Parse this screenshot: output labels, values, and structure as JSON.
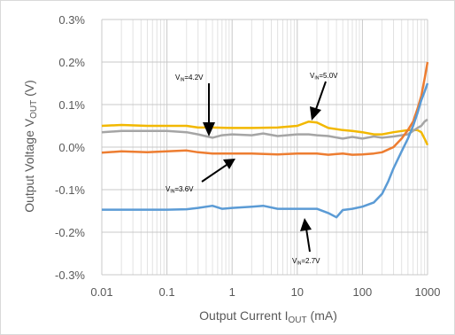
{
  "chart_data": {
    "type": "line",
    "xlabel": "Output Current I",
    "xlabel_sub": "OUT",
    "xlabel_unit": " (mA)",
    "ylabel": "Output Voltage V",
    "ylabel_sub": "OUT",
    "ylabel_unit": " (V)",
    "x_scale": "log",
    "xlim": [
      0.01,
      1000
    ],
    "ylim": [
      -0.3,
      0.3
    ],
    "x_ticks": [
      {
        "v": 0.01,
        "label": "0.01"
      },
      {
        "v": 0.1,
        "label": "0.1"
      },
      {
        "v": 1,
        "label": "1"
      },
      {
        "v": 10,
        "label": "10"
      },
      {
        "v": 100,
        "label": "100"
      },
      {
        "v": 1000,
        "label": "1000"
      }
    ],
    "y_ticks": [
      {
        "v": 0.3,
        "label": "0.3%"
      },
      {
        "v": 0.2,
        "label": "0.2%"
      },
      {
        "v": 0.1,
        "label": "0.1%"
      },
      {
        "v": 0.0,
        "label": "0.0%"
      },
      {
        "v": -0.1,
        "label": "-0.1%"
      },
      {
        "v": -0.2,
        "label": "-0.2%"
      },
      {
        "v": -0.3,
        "label": "-0.3%"
      }
    ],
    "grid": true,
    "series": [
      {
        "name": "VIN=5.0V",
        "color": "#f2b800",
        "points": [
          [
            0.01,
            0.05
          ],
          [
            0.02,
            0.052
          ],
          [
            0.05,
            0.05
          ],
          [
            0.1,
            0.05
          ],
          [
            0.2,
            0.05
          ],
          [
            0.3,
            0.046
          ],
          [
            0.5,
            0.046
          ],
          [
            1,
            0.045
          ],
          [
            2,
            0.045
          ],
          [
            5,
            0.046
          ],
          [
            10,
            0.05
          ],
          [
            15,
            0.06
          ],
          [
            20,
            0.058
          ],
          [
            30,
            0.045
          ],
          [
            50,
            0.04
          ],
          [
            70,
            0.038
          ],
          [
            100,
            0.035
          ],
          [
            150,
            0.03
          ],
          [
            200,
            0.03
          ],
          [
            300,
            0.035
          ],
          [
            500,
            0.04
          ],
          [
            700,
            0.04
          ],
          [
            800,
            0.035
          ],
          [
            900,
            0.02
          ],
          [
            1000,
            0.005
          ]
        ]
      },
      {
        "name": "VIN=4.2V",
        "color": "#a5a5a5",
        "points": [
          [
            0.01,
            0.035
          ],
          [
            0.02,
            0.038
          ],
          [
            0.05,
            0.038
          ],
          [
            0.1,
            0.038
          ],
          [
            0.2,
            0.035
          ],
          [
            0.3,
            0.03
          ],
          [
            0.5,
            0.022
          ],
          [
            0.7,
            0.028
          ],
          [
            1,
            0.03
          ],
          [
            2,
            0.028
          ],
          [
            3,
            0.032
          ],
          [
            5,
            0.026
          ],
          [
            10,
            0.03
          ],
          [
            15,
            0.03
          ],
          [
            20,
            0.028
          ],
          [
            30,
            0.026
          ],
          [
            50,
            0.02
          ],
          [
            70,
            0.024
          ],
          [
            100,
            0.02
          ],
          [
            150,
            0.025
          ],
          [
            200,
            0.022
          ],
          [
            300,
            0.025
          ],
          [
            500,
            0.03
          ],
          [
            700,
            0.045
          ],
          [
            800,
            0.05
          ],
          [
            900,
            0.06
          ],
          [
            1000,
            0.065
          ]
        ]
      },
      {
        "name": "VIN=3.6V",
        "color": "#ed7d31",
        "points": [
          [
            0.01,
            -0.013
          ],
          [
            0.02,
            -0.01
          ],
          [
            0.05,
            -0.012
          ],
          [
            0.1,
            -0.01
          ],
          [
            0.2,
            -0.008
          ],
          [
            0.3,
            -0.012
          ],
          [
            0.5,
            -0.015
          ],
          [
            1,
            -0.015
          ],
          [
            2,
            -0.015
          ],
          [
            5,
            -0.017
          ],
          [
            10,
            -0.015
          ],
          [
            20,
            -0.015
          ],
          [
            30,
            -0.018
          ],
          [
            50,
            -0.015
          ],
          [
            70,
            -0.018
          ],
          [
            100,
            -0.017
          ],
          [
            150,
            -0.015
          ],
          [
            200,
            -0.012
          ],
          [
            300,
            0.0
          ],
          [
            400,
            0.02
          ],
          [
            500,
            0.04
          ],
          [
            600,
            0.06
          ],
          [
            700,
            0.09
          ],
          [
            800,
            0.12
          ],
          [
            900,
            0.16
          ],
          [
            1000,
            0.2
          ]
        ]
      },
      {
        "name": "VIN=2.7V",
        "color": "#5b9bd5",
        "points": [
          [
            0.01,
            -0.147
          ],
          [
            0.05,
            -0.147
          ],
          [
            0.1,
            -0.147
          ],
          [
            0.2,
            -0.146
          ],
          [
            0.3,
            -0.143
          ],
          [
            0.5,
            -0.138
          ],
          [
            0.7,
            -0.145
          ],
          [
            1,
            -0.143
          ],
          [
            2,
            -0.14
          ],
          [
            3,
            -0.138
          ],
          [
            5,
            -0.145
          ],
          [
            10,
            -0.145
          ],
          [
            20,
            -0.145
          ],
          [
            30,
            -0.155
          ],
          [
            40,
            -0.165
          ],
          [
            50,
            -0.148
          ],
          [
            70,
            -0.145
          ],
          [
            100,
            -0.14
          ],
          [
            150,
            -0.13
          ],
          [
            200,
            -0.11
          ],
          [
            250,
            -0.08
          ],
          [
            300,
            -0.05
          ],
          [
            400,
            -0.01
          ],
          [
            500,
            0.02
          ],
          [
            600,
            0.05
          ],
          [
            700,
            0.08
          ],
          [
            800,
            0.11
          ],
          [
            900,
            0.13
          ],
          [
            1000,
            0.15
          ]
        ]
      }
    ],
    "annotations": [
      {
        "main": "V",
        "sub": "IN",
        "rest": "=4.2V"
      },
      {
        "main": "V",
        "sub": "IN",
        "rest": "=5.0V"
      },
      {
        "main": "V",
        "sub": "IN",
        "rest": "=3.6V"
      },
      {
        "main": "V",
        "sub": "IN",
        "rest": "=2.7V"
      }
    ]
  }
}
